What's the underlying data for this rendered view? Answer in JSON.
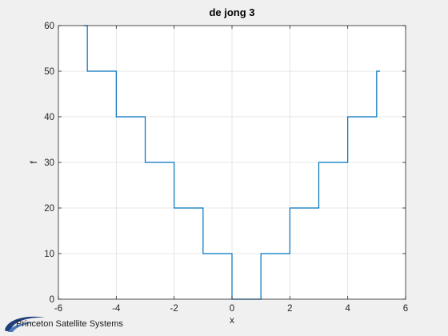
{
  "figure": {
    "background": "#f0f0f0",
    "logo_text": "Princeton Satellite Systems"
  },
  "chart_data": {
    "type": "line",
    "title": "de jong 3",
    "xlabel": "x",
    "ylabel": "f",
    "xlim": [
      -6,
      6
    ],
    "ylim": [
      0,
      60
    ],
    "xticks": [
      -6,
      -4,
      -2,
      0,
      2,
      4,
      6
    ],
    "yticks": [
      0,
      10,
      20,
      30,
      40,
      50,
      60
    ],
    "xtick_labels": [
      "-6",
      "-4",
      "-2",
      "0",
      "2",
      "4",
      "6"
    ],
    "ytick_labels": [
      "0",
      "10",
      "20",
      "30",
      "40",
      "50",
      "60"
    ],
    "grid": true,
    "series": [
      {
        "color": "#0072bd",
        "x": [
          -5.12,
          -5,
          -5,
          -4,
          -4,
          -3,
          -3,
          -2,
          -2,
          -1,
          -1,
          0,
          0,
          1,
          1,
          2,
          2,
          3,
          3,
          4,
          4,
          5,
          5,
          5.12
        ],
        "y": [
          60,
          60,
          50,
          50,
          40,
          40,
          30,
          30,
          20,
          20,
          10,
          10,
          0,
          0,
          10,
          10,
          20,
          20,
          30,
          30,
          40,
          40,
          50,
          50
        ]
      }
    ]
  }
}
